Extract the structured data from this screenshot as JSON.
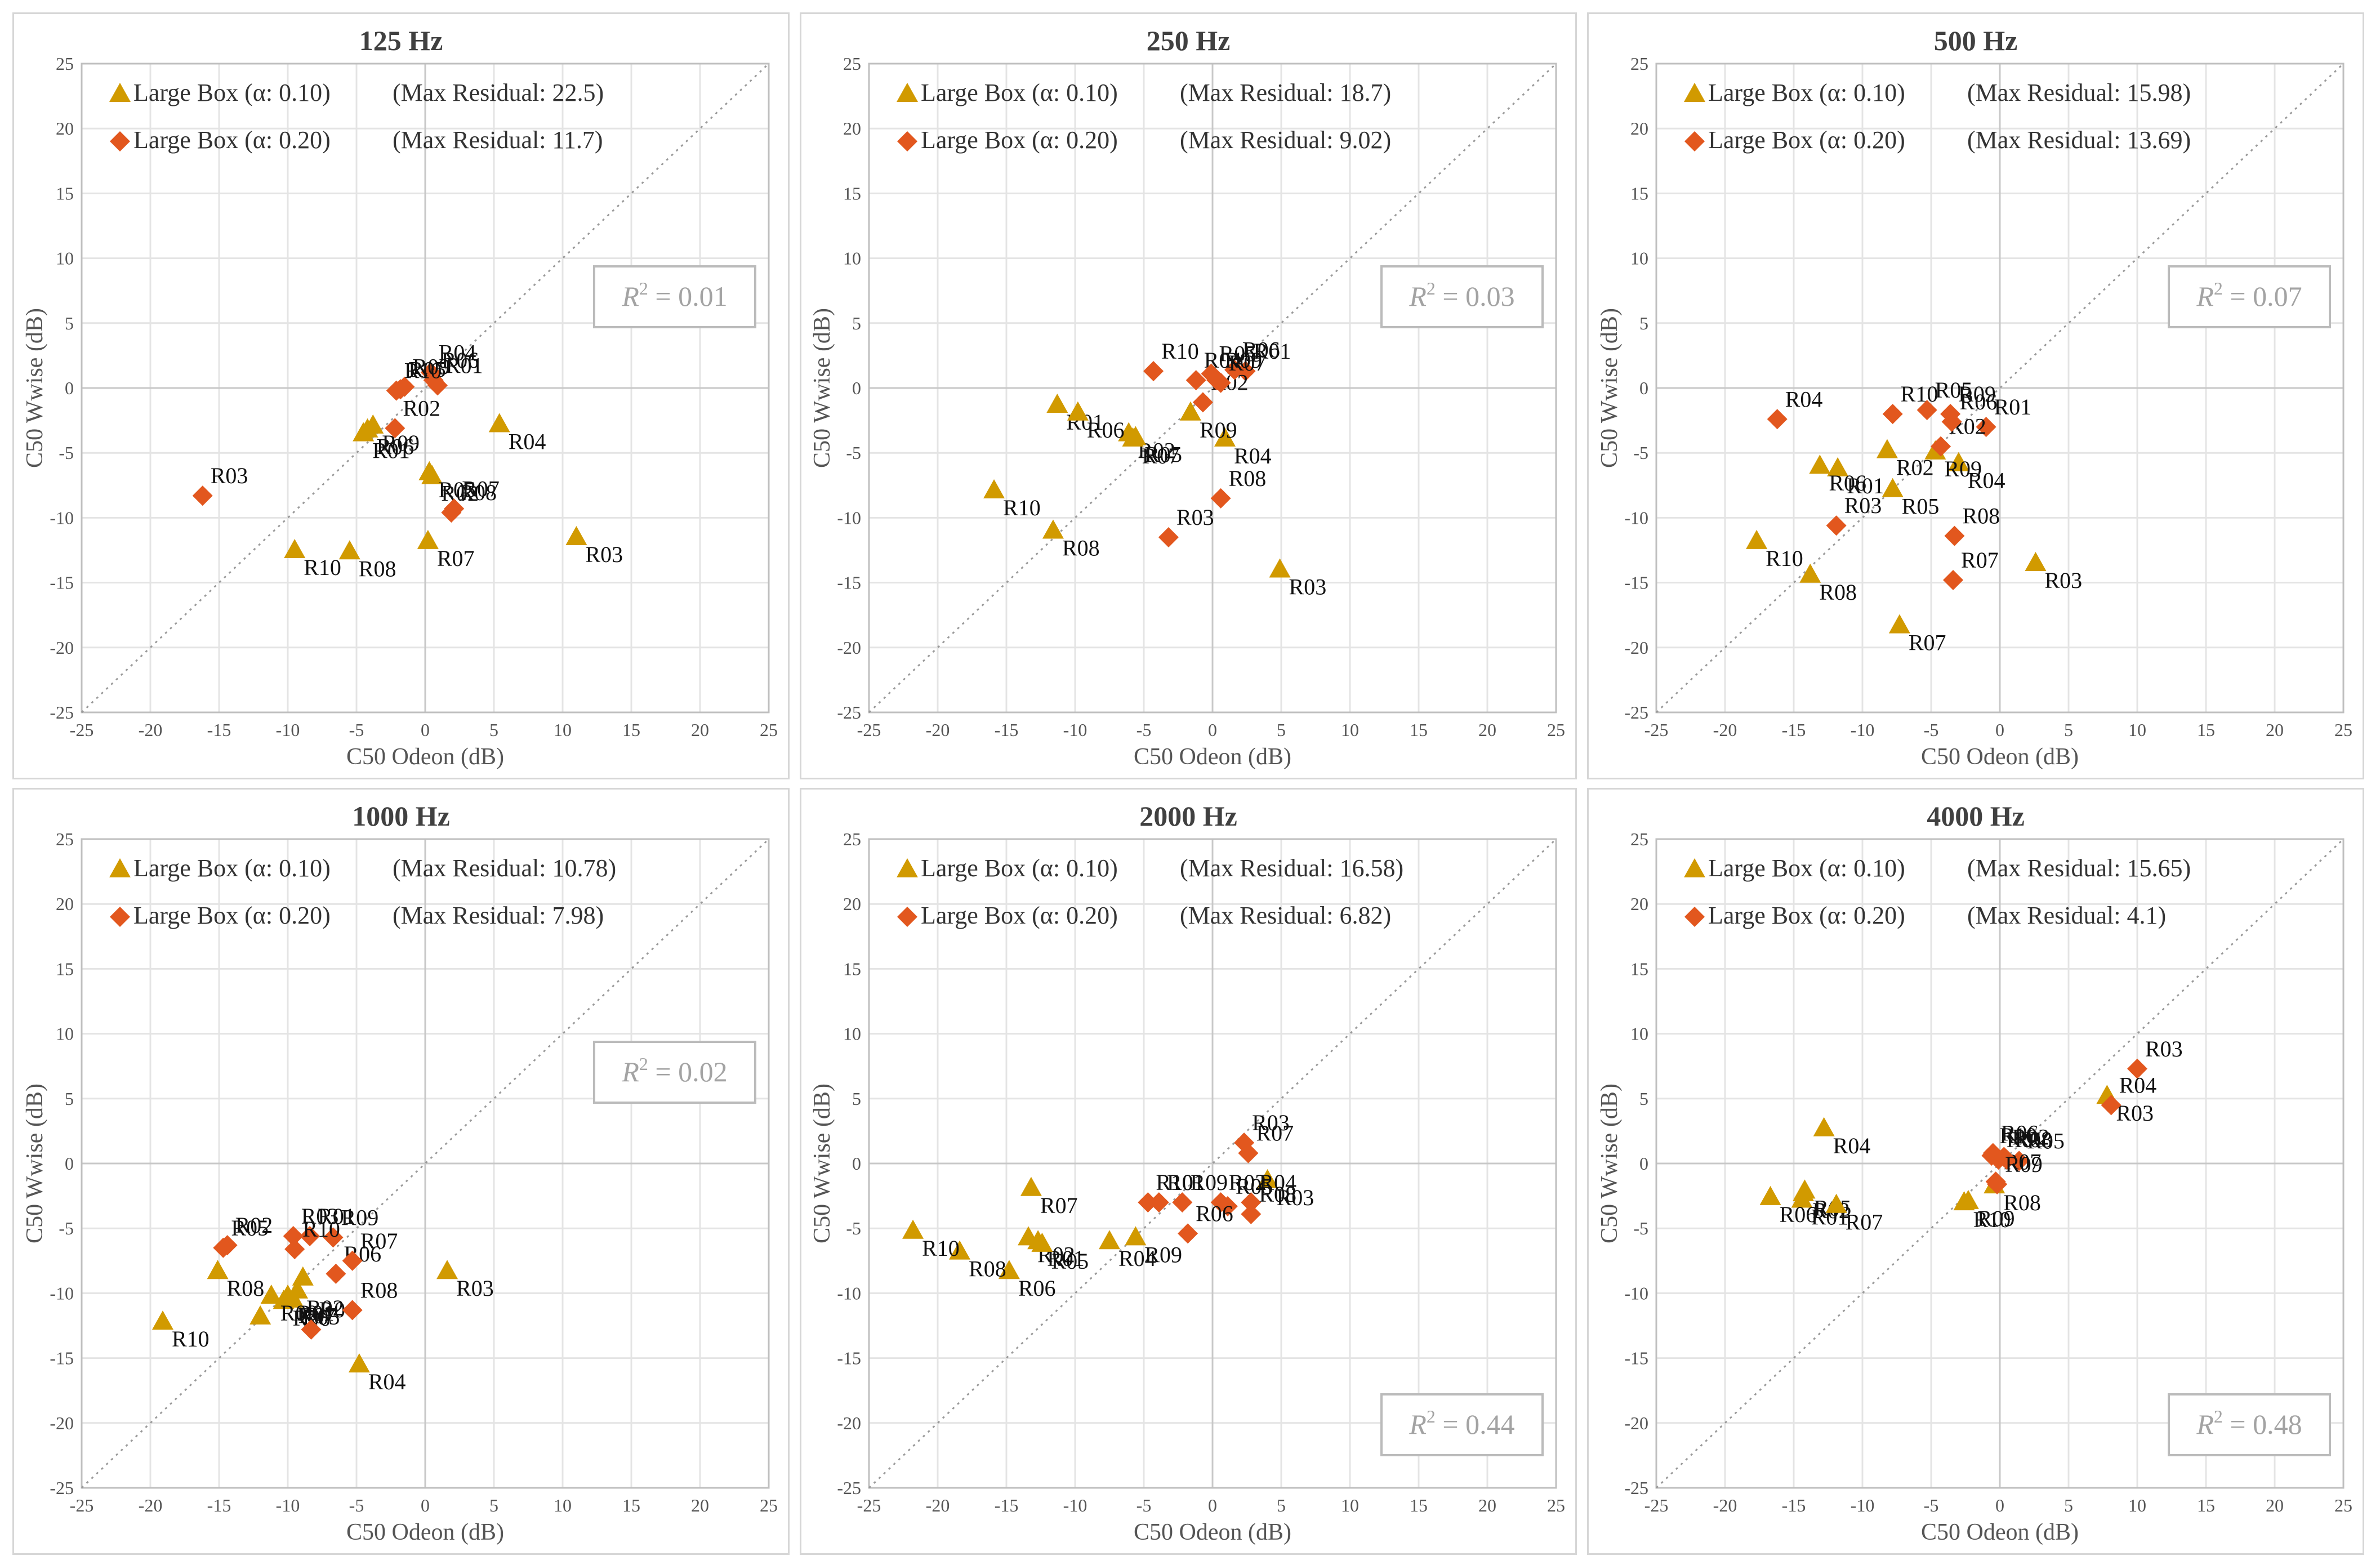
{
  "chart_data": [
    {
      "type": "scatter",
      "title": "125 Hz",
      "xlabel": "C50 Odeon (dB)",
      "ylabel": "C50 Wwise (dB)",
      "xlim": [
        -25,
        25
      ],
      "ylim": [
        -25,
        25
      ],
      "ticks": [
        -25,
        -20,
        -15,
        -10,
        -5,
        0,
        5,
        10,
        15,
        20,
        25
      ],
      "r2": "0.01",
      "r2_position": "top-right",
      "series": [
        {
          "name": "Large Box (α: 0.10)",
          "max_residual": "(Max Residual: 22.5)",
          "marker": "triangle",
          "color": "#d19a00",
          "points": [
            {
              "label": "R01",
              "x": -4.5,
              "y": -3.5
            },
            {
              "label": "R02",
              "x": 0.5,
              "y": -6.8
            },
            {
              "label": "R03",
              "x": 11,
              "y": -11.5
            },
            {
              "label": "R04",
              "x": 5.4,
              "y": -2.8
            },
            {
              "label": "R05",
              "x": 0.3,
              "y": -6.5
            },
            {
              "label": "R06",
              "x": -4.2,
              "y": -3.2
            },
            {
              "label": "R07",
              "x": 0.2,
              "y": -11.8
            },
            {
              "label": "R08",
              "x": -5.5,
              "y": -12.6
            },
            {
              "label": "R09",
              "x": -3.8,
              "y": -2.9
            },
            {
              "label": "R10",
              "x": -9.5,
              "y": -12.5
            }
          ]
        },
        {
          "name": "Large Box (α: 0.20)",
          "max_residual": "(Max Residual: 11.7)",
          "marker": "diamond",
          "color": "#e2571e",
          "points": [
            {
              "label": "R01",
              "x": 0.9,
              "y": 0.2
            },
            {
              "label": "R02",
              "x": -2.2,
              "y": -3.1
            },
            {
              "label": "R03",
              "x": -16.2,
              "y": -8.3
            },
            {
              "label": "R04",
              "x": 0.4,
              "y": 1.2
            },
            {
              "label": "R05",
              "x": -1.8,
              "y": -0.1
            },
            {
              "label": "R06",
              "x": 0.6,
              "y": 0.6
            },
            {
              "label": "R07",
              "x": 2.1,
              "y": -9.3
            },
            {
              "label": "R08",
              "x": 1.9,
              "y": -9.6
            },
            {
              "label": "R09",
              "x": -1.5,
              "y": 0.1
            },
            {
              "label": "R10",
              "x": -2.1,
              "y": -0.2
            }
          ]
        }
      ]
    },
    {
      "type": "scatter",
      "title": "250 Hz",
      "xlabel": "C50 Odeon (dB)",
      "ylabel": "C50 Wwise (dB)",
      "xlim": [
        -25,
        25
      ],
      "ylim": [
        -25,
        25
      ],
      "ticks": [
        -25,
        -20,
        -15,
        -10,
        -5,
        0,
        5,
        10,
        15,
        20,
        25
      ],
      "r2": "0.03",
      "r2_position": "top-right",
      "series": [
        {
          "name": "Large Box (α: 0.10)",
          "max_residual": "(Max Residual: 18.7)",
          "marker": "triangle",
          "color": "#d19a00",
          "points": [
            {
              "label": "R01",
              "x": -11.3,
              "y": -1.3
            },
            {
              "label": "R02",
              "x": -6.1,
              "y": -3.5
            },
            {
              "label": "R03",
              "x": 4.9,
              "y": -14
            },
            {
              "label": "R04",
              "x": 0.9,
              "y": -3.9
            },
            {
              "label": "R05",
              "x": -5.6,
              "y": -3.8
            },
            {
              "label": "R06",
              "x": -9.8,
              "y": -1.9
            },
            {
              "label": "R07",
              "x": -5.8,
              "y": -3.9
            },
            {
              "label": "R08",
              "x": -11.6,
              "y": -11
            },
            {
              "label": "R09",
              "x": -1.6,
              "y": -1.9
            },
            {
              "label": "R10",
              "x": -15.9,
              "y": -7.9
            }
          ]
        },
        {
          "name": "Large Box (α: 0.20)",
          "max_residual": "(Max Residual: 9.02)",
          "marker": "diamond",
          "color": "#e2571e",
          "points": [
            {
              "label": "R01",
              "x": 2.4,
              "y": 1.3
            },
            {
              "label": "R02",
              "x": -0.7,
              "y": -1.1
            },
            {
              "label": "R03",
              "x": -3.2,
              "y": -11.5
            },
            {
              "label": "R04",
              "x": -1.2,
              "y": 0.6
            },
            {
              "label": "R05",
              "x": -0.1,
              "y": 1.1
            },
            {
              "label": "R06",
              "x": 1.6,
              "y": 1.4
            },
            {
              "label": "R07",
              "x": 0.6,
              "y": 0.4
            },
            {
              "label": "R08",
              "x": 0.6,
              "y": -8.5
            },
            {
              "label": "R09",
              "x": 0.3,
              "y": 0.6
            },
            {
              "label": "R10",
              "x": -4.3,
              "y": 1.3
            }
          ]
        }
      ]
    },
    {
      "type": "scatter",
      "title": "500 Hz",
      "xlabel": "C50 Odeon (dB)",
      "ylabel": "C50 Wwise (dB)",
      "xlim": [
        -25,
        25
      ],
      "ylim": [
        -25,
        25
      ],
      "ticks": [
        -25,
        -20,
        -15,
        -10,
        -5,
        0,
        5,
        10,
        15,
        20,
        25
      ],
      "r2": "0.07",
      "r2_position": "top-right",
      "series": [
        {
          "name": "Large Box (α: 0.10)",
          "max_residual": "(Max Residual: 15.98)",
          "marker": "triangle",
          "color": "#d19a00",
          "points": [
            {
              "label": "R01",
              "x": -11.8,
              "y": -6.2
            },
            {
              "label": "R02",
              "x": -8.2,
              "y": -4.8
            },
            {
              "label": "R03",
              "x": 2.6,
              "y": -13.5
            },
            {
              "label": "R04",
              "x": -3,
              "y": -5.8
            },
            {
              "label": "R05",
              "x": -7.8,
              "y": -7.8
            },
            {
              "label": "R06",
              "x": -13.1,
              "y": -6
            },
            {
              "label": "R07",
              "x": -7.3,
              "y": -18.3
            },
            {
              "label": "R08",
              "x": -13.8,
              "y": -14.4
            },
            {
              "label": "R09",
              "x": -4.7,
              "y": -4.9
            },
            {
              "label": "R10",
              "x": -17.7,
              "y": -11.8
            }
          ]
        },
        {
          "name": "Large Box (α: 0.20)",
          "max_residual": "(Max Residual: 13.69)",
          "marker": "diamond",
          "color": "#e2571e",
          "points": [
            {
              "label": "R01",
              "x": -1,
              "y": -3
            },
            {
              "label": "R02",
              "x": -4.3,
              "y": -4.5
            },
            {
              "label": "R03",
              "x": -11.9,
              "y": -10.6
            },
            {
              "label": "R04",
              "x": -16.2,
              "y": -2.4
            },
            {
              "label": "R05",
              "x": -5.3,
              "y": -1.7
            },
            {
              "label": "R06",
              "x": -3.5,
              "y": -2.6
            },
            {
              "label": "R07",
              "x": -3.4,
              "y": -14.8
            },
            {
              "label": "R08",
              "x": -3.3,
              "y": -11.4
            },
            {
              "label": "R09",
              "x": -3.6,
              "y": -2
            },
            {
              "label": "R10",
              "x": -7.8,
              "y": -2
            }
          ]
        }
      ]
    },
    {
      "type": "scatter",
      "title": "1000 Hz",
      "xlabel": "C50 Odeon (dB)",
      "ylabel": "C50 Wwise (dB)",
      "xlim": [
        -25,
        25
      ],
      "ylim": [
        -25,
        25
      ],
      "ticks": [
        -25,
        -20,
        -15,
        -10,
        -5,
        0,
        5,
        10,
        15,
        20,
        25
      ],
      "r2": "0.02",
      "r2_position": "top-right",
      "series": [
        {
          "name": "Large Box (α: 0.10)",
          "max_residual": "(Max Residual: 10.78)",
          "marker": "triangle",
          "color": "#d19a00",
          "points": [
            {
              "label": "R01",
              "x": -10,
              "y": -10.2
            },
            {
              "label": "R02",
              "x": -9.3,
              "y": -9.8
            },
            {
              "label": "R03",
              "x": 1.6,
              "y": -8.3
            },
            {
              "label": "R04",
              "x": -4.8,
              "y": -15.5
            },
            {
              "label": "R05",
              "x": -9.6,
              "y": -10.5
            },
            {
              "label": "R06",
              "x": -10.3,
              "y": -10.6
            },
            {
              "label": "R07",
              "x": -9.9,
              "y": -10.4
            },
            {
              "label": "R08",
              "x": -15.1,
              "y": -8.3
            },
            {
              "label": "R09",
              "x": -11.2,
              "y": -10.2
            },
            {
              "label": "R10",
              "x": -19.1,
              "y": -12.2
            },
            {
              "label": "",
              "x": -12,
              "y": -11.8
            },
            {
              "label": "",
              "x": -8.9,
              "y": -8.8
            }
          ]
        },
        {
          "name": "Large Box (α: 0.20)",
          "max_residual": "(Max Residual: 7.98)",
          "marker": "diamond",
          "color": "#e2571e",
          "points": [
            {
              "label": "R01",
              "x": -8.4,
              "y": -5.6
            },
            {
              "label": "R02",
              "x": -14.4,
              "y": -6.3
            },
            {
              "label": "R03",
              "x": -9.6,
              "y": -5.6
            },
            {
              "label": "R04",
              "x": -8.3,
              "y": -12.8
            },
            {
              "label": "R05",
              "x": -14.7,
              "y": -6.5
            },
            {
              "label": "R06",
              "x": -6.5,
              "y": -8.5
            },
            {
              "label": "R07",
              "x": -5.3,
              "y": -7.5
            },
            {
              "label": "R08",
              "x": -5.3,
              "y": -11.3
            },
            {
              "label": "R09",
              "x": -6.7,
              "y": -5.7
            },
            {
              "label": "R10",
              "x": -9.5,
              "y": -6.6
            }
          ]
        }
      ]
    },
    {
      "type": "scatter",
      "title": "2000 Hz",
      "xlabel": "C50 Odeon (dB)",
      "ylabel": "C50 Wwise (dB)",
      "xlim": [
        -25,
        25
      ],
      "ylim": [
        -25,
        25
      ],
      "ticks": [
        -25,
        -20,
        -15,
        -10,
        -5,
        0,
        5,
        10,
        15,
        20,
        25
      ],
      "r2": "0.44",
      "r2_position": "bottom-right",
      "series": [
        {
          "name": "Large Box (α: 0.10)",
          "max_residual": "(Max Residual: 16.58)",
          "marker": "triangle",
          "color": "#d19a00",
          "points": [
            {
              "label": "R01",
              "x": -12.7,
              "y": -6
            },
            {
              "label": "R02",
              "x": -13.4,
              "y": -5.7
            },
            {
              "label": "R03",
              "x": 4,
              "y": -1.3
            },
            {
              "label": "R04",
              "x": -7.5,
              "y": -6
            },
            {
              "label": "R05",
              "x": -12.4,
              "y": -6.2
            },
            {
              "label": "R06",
              "x": -14.8,
              "y": -8.3
            },
            {
              "label": "R07",
              "x": -13.2,
              "y": -1.9
            },
            {
              "label": "R08",
              "x": -18.4,
              "y": -6.8
            },
            {
              "label": "R09",
              "x": -5.6,
              "y": -5.7
            },
            {
              "label": "R10",
              "x": -21.8,
              "y": -5.2
            }
          ]
        },
        {
          "name": "Large Box (α: 0.20)",
          "max_residual": "(Max Residual: 6.82)",
          "marker": "diamond",
          "color": "#e2571e",
          "points": [
            {
              "label": "R01",
              "x": -3.9,
              "y": -3
            },
            {
              "label": "R02",
              "x": 0.6,
              "y": -3
            },
            {
              "label": "R03",
              "x": 2.3,
              "y": 1.6
            },
            {
              "label": "R04",
              "x": 2.8,
              "y": -3
            },
            {
              "label": "R05",
              "x": 1.1,
              "y": -3.3
            },
            {
              "label": "R06",
              "x": -1.8,
              "y": -5.4
            },
            {
              "label": "R07",
              "x": 2.6,
              "y": 0.8
            },
            {
              "label": "R08",
              "x": 2.8,
              "y": -3.9
            },
            {
              "label": "R09",
              "x": -2.2,
              "y": -3
            },
            {
              "label": "R10",
              "x": -4.7,
              "y": -3
            }
          ]
        }
      ]
    },
    {
      "type": "scatter",
      "title": "4000 Hz",
      "xlabel": "C50 Odeon (dB)",
      "ylabel": "C50 Wwise (dB)",
      "xlim": [
        -25,
        25
      ],
      "ylim": [
        -25,
        25
      ],
      "ticks": [
        -25,
        -20,
        -15,
        -10,
        -5,
        0,
        5,
        10,
        15,
        20,
        25
      ],
      "r2": "0.48",
      "r2_position": "bottom-right",
      "series": [
        {
          "name": "Large Box (α: 0.10)",
          "max_residual": "(Max Residual: 15.65)",
          "marker": "triangle",
          "color": "#d19a00",
          "points": [
            {
              "label": "R01",
              "x": -14.4,
              "y": -2.8
            },
            {
              "label": "R02",
              "x": -14.3,
              "y": -2.3
            },
            {
              "label": "R03",
              "x": 7.8,
              "y": 5.2
            },
            {
              "label": "R04",
              "x": -12.8,
              "y": 2.7
            },
            {
              "label": "R05",
              "x": -14.2,
              "y": -2.1
            },
            {
              "label": "R06",
              "x": -16.7,
              "y": -2.6
            },
            {
              "label": "R07",
              "x": -11.9,
              "y": -3.2
            },
            {
              "label": "R08",
              "x": -0.4,
              "y": -1.7
            },
            {
              "label": "R09",
              "x": -2.3,
              "y": -2.9
            },
            {
              "label": "R10",
              "x": -2.6,
              "y": -3
            }
          ]
        },
        {
          "name": "Large Box (α: 0.20)",
          "max_residual": "(Max Residual: 4.1)",
          "marker": "diamond",
          "color": "#e2571e",
          "points": [
            {
              "label": "R01",
              "x": -0.1,
              "y": 0.3
            },
            {
              "label": "R02",
              "x": 0.3,
              "y": 0.5
            },
            {
              "label": "R03",
              "x": 10,
              "y": 7.3
            },
            {
              "label": "R04",
              "x": 8.1,
              "y": 4.5
            },
            {
              "label": "R05",
              "x": 1.4,
              "y": 0.2
            },
            {
              "label": "R06",
              "x": -0.5,
              "y": 0.8
            },
            {
              "label": "R07",
              "x": -0.3,
              "y": -1.4
            },
            {
              "label": "R08",
              "x": 0.5,
              "y": 0.3
            },
            {
              "label": "R09",
              "x": -0.2,
              "y": -1.6
            },
            {
              "label": "R10",
              "x": -0.6,
              "y": 0.6
            }
          ]
        }
      ]
    }
  ]
}
